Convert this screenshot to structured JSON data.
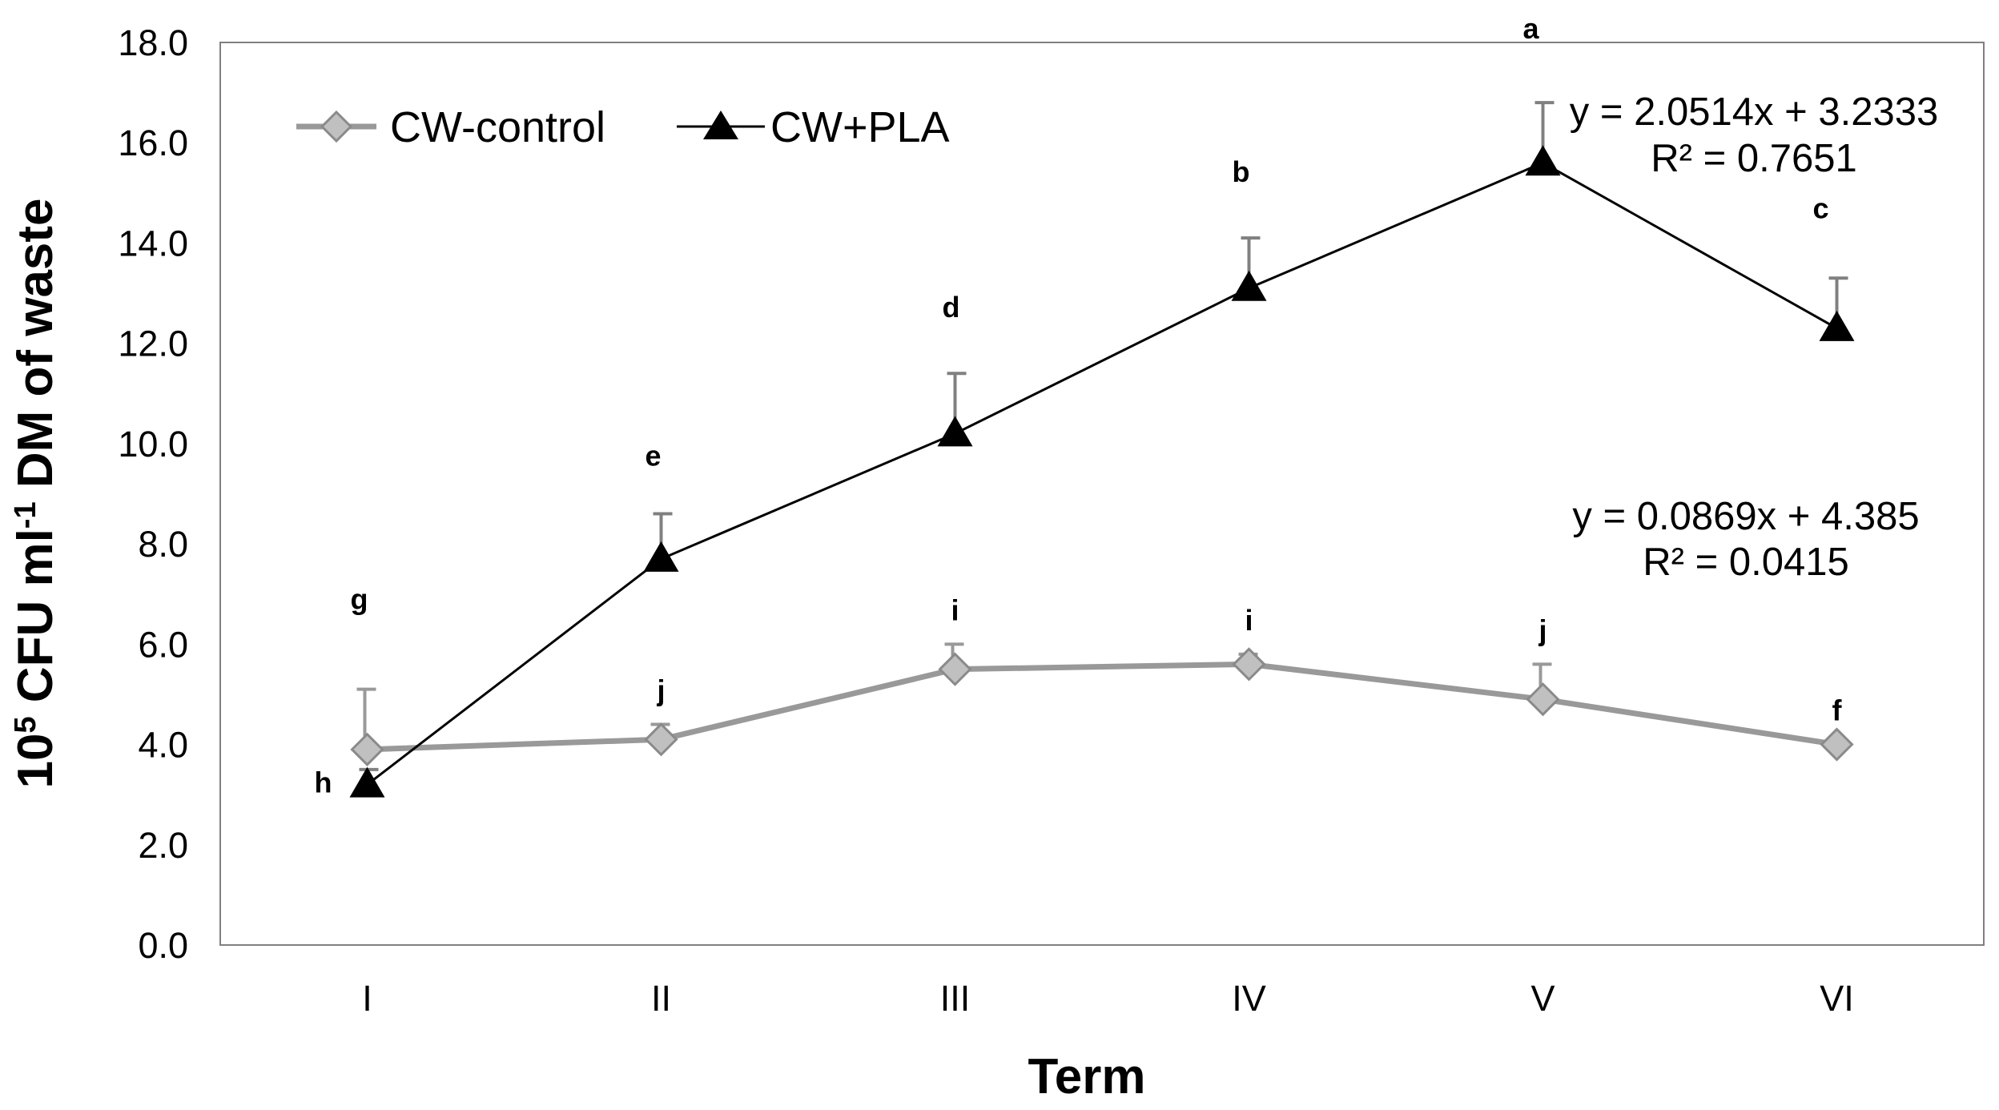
{
  "chart_data": {
    "type": "line",
    "categories": [
      "I",
      "II",
      "III",
      "IV",
      "V",
      "VI"
    ],
    "xlabel": "Term",
    "ylabel": {
      "base": "10",
      "sup1": "5",
      "mid": " CFU ml",
      "sup2": "-1",
      "tail": " DM of waste"
    },
    "ylim": [
      0,
      18
    ],
    "yticks": [
      "0.0",
      "2.0",
      "4.0",
      "6.0",
      "8.0",
      "10.0",
      "12.0",
      "14.0",
      "16.0",
      "18.0"
    ],
    "grid": false,
    "legend_position": "top-left",
    "series": [
      {
        "name": "CW-control",
        "marker": "diamond",
        "color": "#999999",
        "values": [
          3.9,
          4.1,
          5.5,
          5.6,
          4.9,
          4.0
        ],
        "errors": [
          1.2,
          0.3,
          0.5,
          0.2,
          0.7,
          0.0
        ],
        "letters": [
          "g",
          "j",
          "i",
          "i",
          "j",
          "f"
        ],
        "trendline": {
          "equation": "y = 0.0869x + 4.385",
          "r2": "R² = 0.0415"
        }
      },
      {
        "name": "CW+PLA",
        "marker": "triangle",
        "color": "#000000",
        "values": [
          3.2,
          7.7,
          10.2,
          13.1,
          15.6,
          12.3
        ],
        "errors": [
          0.3,
          0.9,
          1.2,
          1.0,
          1.2,
          1.0
        ],
        "letters": [
          "h",
          "e",
          "d",
          "b",
          "a",
          "c"
        ],
        "trendline": {
          "equation": "y = 2.0514x + 3.2333",
          "r2": "R² = 0.7651"
        }
      }
    ]
  }
}
